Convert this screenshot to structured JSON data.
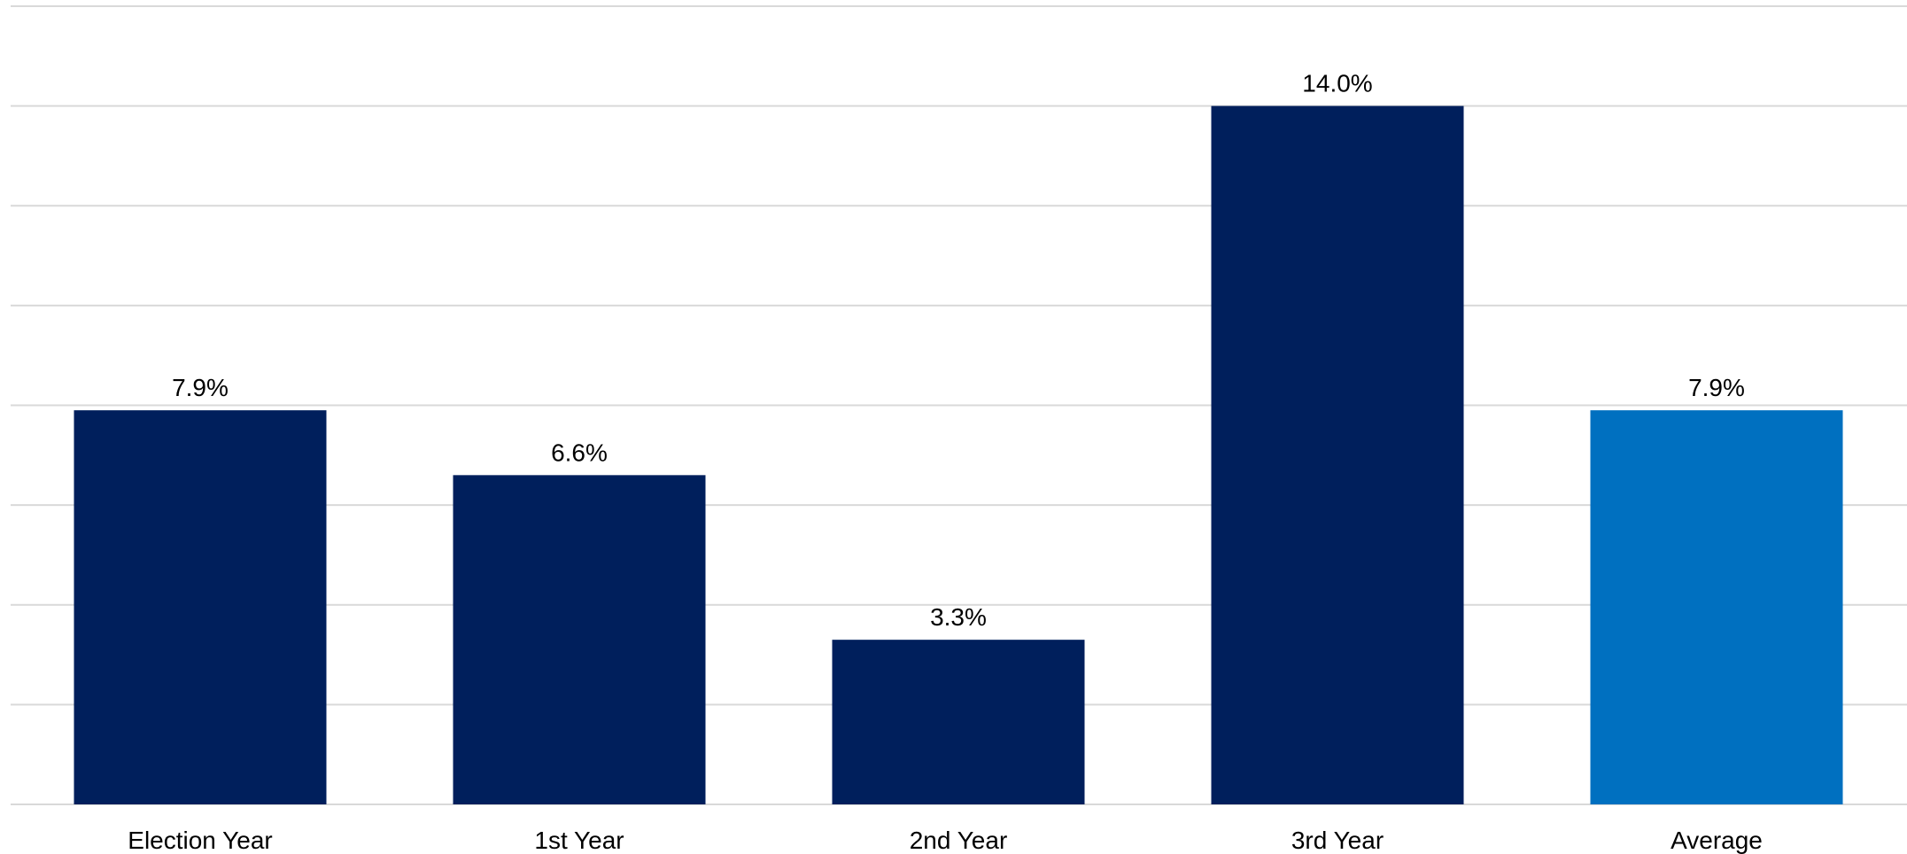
{
  "chart_data": {
    "type": "bar",
    "categories": [
      "Election Year",
      "1st Year",
      "2nd Year",
      "3rd Year",
      "Average"
    ],
    "values": [
      7.9,
      6.6,
      3.3,
      14.0,
      7.9
    ],
    "data_labels": [
      "7.9%",
      "6.6%",
      "3.3%",
      "14.0%",
      "7.9%"
    ],
    "bar_colors": [
      "#001f5c",
      "#001f5c",
      "#001f5c",
      "#001f5c",
      "#0070c0"
    ],
    "ylim": [
      0,
      16
    ],
    "y_gridline_step": 2,
    "grid": true,
    "legend": "none",
    "title": "",
    "xlabel": "",
    "ylabel": ""
  },
  "colors": {
    "primary_bar": "#001f5c",
    "highlight_bar": "#0070c0",
    "gridline": "#d9d9d9"
  }
}
